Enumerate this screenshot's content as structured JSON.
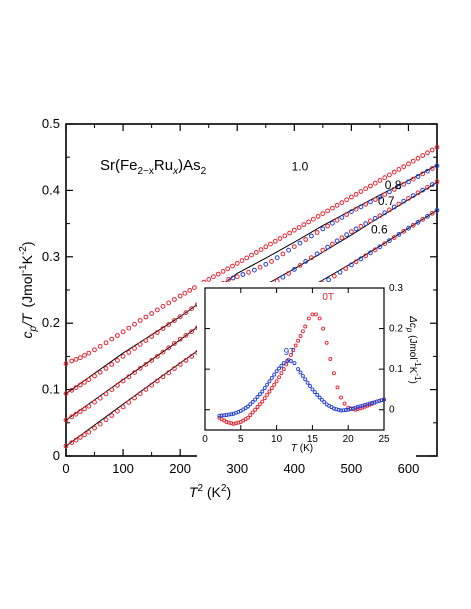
{
  "chart_data": [
    {
      "type": "scatter",
      "title": {
        "base": "Sr(Fe",
        "sub1": "2−x",
        "mid": "Ru",
        "sub2": "x",
        "end": ")As",
        "sub3": "2"
      },
      "xlabel": {
        "base": "T",
        "sup": "2",
        "unit": " (K",
        "unitsup": "2",
        "close": ")"
      },
      "ylabel": {
        "c": "c",
        "p": "p",
        "slashT": "/T",
        "unit": "(Jmol",
        "e1": "-1",
        "K": "K",
        "e2": "-2",
        "close": ")"
      },
      "xlim": [
        0,
        650
      ],
      "ylim": [
        0,
        0.5
      ],
      "xticks": [
        0,
        100,
        200,
        300,
        400,
        500,
        600
      ],
      "yticks": [
        0,
        0.1,
        0.2,
        0.3,
        0.4,
        0.5
      ],
      "ytick_labels": [
        "0",
        "0.1",
        "0.2",
        "0.3",
        "0.4",
        "0.5"
      ],
      "fit_color": "#000000",
      "marker_colors": [
        "#e8222e",
        "#1f3fd6"
      ],
      "series": [
        {
          "name": "1.0",
          "points": [
            [
              0,
              0.139
            ],
            [
              10,
              0.143
            ],
            [
              25,
              0.148
            ],
            [
              40,
              0.155
            ],
            [
              60,
              0.165
            ],
            [
              80,
              0.176
            ],
            [
              100,
              0.187
            ],
            [
              130,
              0.204
            ],
            [
              160,
              0.22
            ],
            [
              200,
              0.241
            ],
            [
              250,
              0.266
            ],
            [
              300,
              0.29
            ],
            [
              350,
              0.315
            ],
            [
              400,
              0.34
            ],
            [
              450,
              0.365
            ],
            [
              500,
              0.39
            ],
            [
              550,
              0.415
            ],
            [
              600,
              0.44
            ],
            [
              650,
              0.465
            ]
          ],
          "fit": []
        },
        {
          "name": "0.8",
          "points": [
            [
              0,
              0.094
            ],
            [
              10,
              0.099
            ],
            [
              25,
              0.107
            ],
            [
              40,
              0.115
            ],
            [
              60,
              0.126
            ],
            [
              80,
              0.138
            ],
            [
              100,
              0.15
            ],
            [
              130,
              0.168
            ],
            [
              160,
              0.186
            ],
            [
              200,
              0.21
            ],
            [
              230,
              0.228
            ],
            [
              260,
              0.247
            ],
            [
              275,
              0.26
            ],
            [
              285,
              0.266
            ],
            [
              300,
              0.27
            ],
            [
              330,
              0.28
            ],
            [
              360,
              0.293
            ],
            [
              390,
              0.31
            ],
            [
              420,
              0.326
            ],
            [
              450,
              0.342
            ],
            [
              500,
              0.368
            ],
            [
              550,
              0.39
            ],
            [
              600,
              0.413
            ],
            [
              650,
              0.437
            ]
          ],
          "fit": [
            [
              0,
              0.094
            ],
            [
              100,
              0.155
            ],
            [
              200,
              0.21
            ],
            [
              250,
              0.24
            ],
            [
              280,
              0.262
            ],
            [
              300,
              0.275
            ],
            [
              350,
              0.298
            ],
            [
              400,
              0.322
            ],
            [
              450,
              0.347
            ],
            [
              500,
              0.37
            ],
            [
              550,
              0.393
            ],
            [
              600,
              0.415
            ],
            [
              650,
              0.438
            ]
          ]
        },
        {
          "name": "0.7",
          "points": [
            [
              0,
              0.054
            ],
            [
              10,
              0.059
            ],
            [
              25,
              0.067
            ],
            [
              40,
              0.075
            ],
            [
              60,
              0.087
            ],
            [
              80,
              0.1
            ],
            [
              100,
              0.113
            ],
            [
              130,
              0.132
            ],
            [
              160,
              0.15
            ],
            [
              200,
              0.176
            ],
            [
              230,
              0.193
            ],
            [
              260,
              0.212
            ],
            [
              280,
              0.224
            ],
            [
              300,
              0.233
            ],
            [
              330,
              0.245
            ],
            [
              360,
              0.258
            ],
            [
              390,
              0.275
            ],
            [
              420,
              0.293
            ],
            [
              450,
              0.31
            ],
            [
              500,
              0.338
            ],
            [
              550,
              0.362
            ],
            [
              600,
              0.388
            ],
            [
              650,
              0.413
            ]
          ],
          "fit": [
            [
              0,
              0.054
            ],
            [
              100,
              0.115
            ],
            [
              200,
              0.175
            ],
            [
              250,
              0.207
            ],
            [
              300,
              0.238
            ],
            [
              330,
              0.25
            ],
            [
              350,
              0.258
            ],
            [
              400,
              0.282
            ],
            [
              450,
              0.307
            ],
            [
              500,
              0.333
            ],
            [
              550,
              0.36
            ],
            [
              600,
              0.386
            ],
            [
              650,
              0.412
            ]
          ]
        },
        {
          "name": "0.6",
          "points": [
            [
              0,
              0.015
            ],
            [
              10,
              0.02
            ],
            [
              25,
              0.028
            ],
            [
              40,
              0.036
            ],
            [
              60,
              0.048
            ],
            [
              80,
              0.061
            ],
            [
              100,
              0.074
            ],
            [
              130,
              0.094
            ],
            [
              160,
              0.113
            ],
            [
              200,
              0.138
            ],
            [
              230,
              0.156
            ],
            [
              260,
              0.173
            ],
            [
              290,
              0.188
            ],
            [
              320,
              0.199
            ],
            [
              350,
              0.208
            ],
            [
              380,
              0.22
            ],
            [
              410,
              0.236
            ],
            [
              440,
              0.254
            ],
            [
              470,
              0.271
            ],
            [
              500,
              0.288
            ],
            [
              550,
              0.315
            ],
            [
              600,
              0.343
            ],
            [
              650,
              0.37
            ]
          ],
          "fit": [
            [
              0,
              0.015
            ],
            [
              100,
              0.078
            ],
            [
              200,
              0.14
            ],
            [
              250,
              0.17
            ],
            [
              300,
              0.196
            ],
            [
              350,
              0.218
            ],
            [
              400,
              0.241
            ],
            [
              450,
              0.265
            ],
            [
              500,
              0.29
            ],
            [
              550,
              0.316
            ],
            [
              600,
              0.343
            ],
            [
              650,
              0.37
            ]
          ]
        }
      ]
    },
    {
      "type": "scatter",
      "xlabel": {
        "T": "T",
        "unit": " (K)"
      },
      "ylabel": {
        "d": "Δc",
        "p": "p",
        "unit": " (Jmol",
        "e1": "-1",
        "K": "K",
        "e2": "-1",
        "close": ")"
      },
      "xlim": [
        0,
        25
      ],
      "ylim": [
        -0.05,
        0.3
      ],
      "xticks": [
        0,
        5,
        10,
        15,
        20,
        25
      ],
      "yticks": [
        0,
        0.1,
        0.2,
        0.3
      ],
      "ytick_labels": [
        "0",
        "0.1",
        "0.2",
        "0.3"
      ],
      "series": [
        {
          "name": "0T",
          "color": "#e8222e",
          "points": [
            [
              2,
              -0.02
            ],
            [
              3,
              -0.03
            ],
            [
              4,
              -0.035
            ],
            [
              5,
              -0.03
            ],
            [
              6,
              -0.02
            ],
            [
              7,
              0
            ],
            [
              8,
              0.02
            ],
            [
              9,
              0.045
            ],
            [
              10,
              0.07
            ],
            [
              11,
              0.1
            ],
            [
              12,
              0.135
            ],
            [
              13,
              0.17
            ],
            [
              14,
              0.205
            ],
            [
              14.5,
              0.225
            ],
            [
              15,
              0.235
            ],
            [
              15.5,
              0.235
            ],
            [
              16,
              0.225
            ],
            [
              16.5,
              0.2
            ],
            [
              17,
              0.165
            ],
            [
              17.5,
              0.125
            ],
            [
              18,
              0.09
            ],
            [
              18.5,
              0.055
            ],
            [
              19,
              0.03
            ],
            [
              19.5,
              0.015
            ],
            [
              20,
              0.005
            ],
            [
              21,
              0
            ],
            [
              22,
              0.005
            ],
            [
              23,
              0.012
            ],
            [
              24,
              0.02
            ],
            [
              25,
              0.025
            ]
          ]
        },
        {
          "name": "9T",
          "color": "#1f3fd6",
          "points": [
            [
              2,
              -0.015
            ],
            [
              3,
              -0.013
            ],
            [
              4,
              -0.01
            ],
            [
              5,
              -0.003
            ],
            [
              6,
              0.008
            ],
            [
              7,
              0.025
            ],
            [
              8,
              0.045
            ],
            [
              9,
              0.07
            ],
            [
              10,
              0.095
            ],
            [
              11,
              0.115
            ],
            [
              11.5,
              0.12
            ],
            [
              12,
              0.12
            ],
            [
              12.5,
              0.115
            ],
            [
              13,
              0.1
            ],
            [
              14,
              0.075
            ],
            [
              15,
              0.05
            ],
            [
              16,
              0.03
            ],
            [
              17,
              0.013
            ],
            [
              18,
              0.003
            ],
            [
              19,
              -0.002
            ],
            [
              20,
              0
            ],
            [
              21,
              0.005
            ],
            [
              22,
              0.01
            ],
            [
              23,
              0.015
            ],
            [
              24,
              0.02
            ],
            [
              25,
              0.025
            ]
          ]
        }
      ]
    }
  ]
}
